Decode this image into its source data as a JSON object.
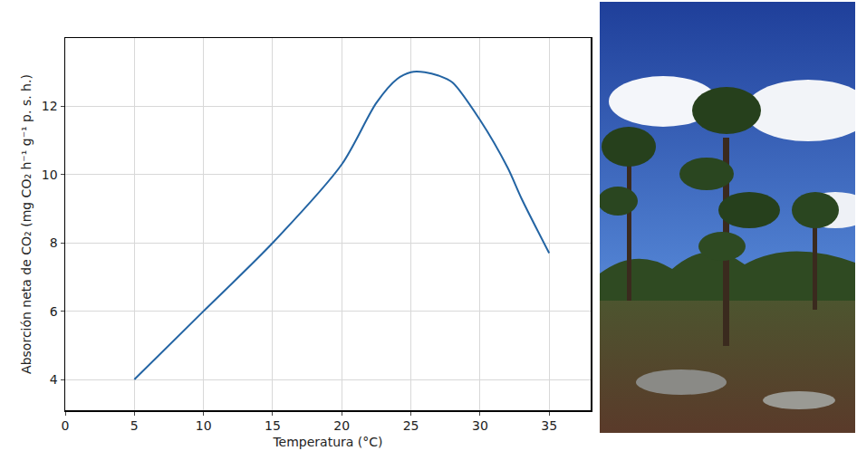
{
  "chart_data": {
    "type": "line",
    "x_label": "Temperatura (°C)",
    "y_label": "Absorción neta de CO₂ (mg CO₂ h⁻¹ g⁻¹ p. s. h.)",
    "x": [
      5,
      10,
      15,
      20,
      22.5,
      24,
      25,
      26,
      27,
      28,
      30,
      32,
      33,
      35
    ],
    "values": [
      4.0,
      6.0,
      8.0,
      10.3,
      12.1,
      12.8,
      13.0,
      13.0,
      12.9,
      12.7,
      11.6,
      10.2,
      9.3,
      7.7
    ],
    "color": "#2364a3",
    "xlim": [
      0,
      38
    ],
    "xticks": [
      0,
      5,
      10,
      15,
      20,
      25,
      30,
      35
    ],
    "ylim": [
      3.1,
      14
    ],
    "yticks": [
      4,
      6,
      8,
      10,
      12
    ],
    "grid": true
  }
}
